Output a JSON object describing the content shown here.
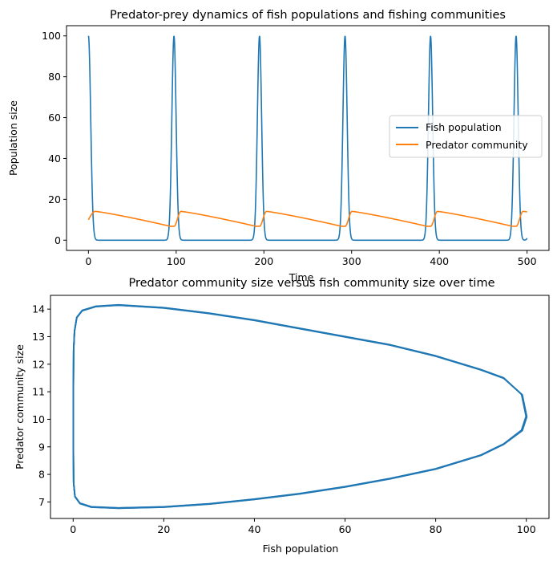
{
  "chart_data": [
    {
      "type": "line",
      "title": "Predator-prey dynamics of fish populations and fishing communities",
      "xlabel": "Time",
      "ylabel": "Population size",
      "xlim": [
        -25,
        525
      ],
      "ylim": [
        -5,
        105
      ],
      "xticks": [
        0,
        100,
        200,
        300,
        400,
        500
      ],
      "yticks": [
        0,
        20,
        40,
        60,
        80,
        100
      ],
      "grid": false,
      "legend_position": "center-right",
      "series": [
        {
          "name": "Fish population",
          "color": "#1f77b4",
          "peaks_at_time": [
            0,
            97.5,
            195,
            292.5,
            390,
            487.5
          ],
          "peak_value": 100,
          "trough_value": 0,
          "end_value": 1
        },
        {
          "name": "Predator community",
          "color": "#ff7f0e",
          "max_value": 14.1,
          "min_value": 6.8,
          "start_value": 10
        }
      ]
    },
    {
      "type": "line",
      "title": "Predator community size versus fish community size over time",
      "xlabel": "Fish population",
      "ylabel": "Predator community size",
      "xlim": [
        -5,
        105
      ],
      "ylim": [
        6.4,
        14.5
      ],
      "xticks": [
        0,
        20,
        40,
        60,
        80,
        100
      ],
      "yticks": [
        7,
        8,
        9,
        10,
        11,
        12,
        13,
        14
      ],
      "grid": false,
      "series": [
        {
          "color": "#1f77b4",
          "points": [
            [
              100,
              10.1
            ],
            [
              99,
              10.9
            ],
            [
              95,
              11.5
            ],
            [
              90,
              11.8
            ],
            [
              80,
              12.3
            ],
            [
              70,
              12.7
            ],
            [
              60,
              13.0
            ],
            [
              50,
              13.3
            ],
            [
              40,
              13.6
            ],
            [
              30,
              13.85
            ],
            [
              20,
              14.05
            ],
            [
              10,
              14.15
            ],
            [
              5,
              14.1
            ],
            [
              2,
              13.95
            ],
            [
              0.8,
              13.7
            ],
            [
              0.3,
              13.2
            ],
            [
              0.1,
              12.5
            ],
            [
              0.05,
              11.0
            ],
            [
              0.05,
              9.0
            ],
            [
              0.1,
              7.7
            ],
            [
              0.4,
              7.2
            ],
            [
              1.5,
              6.95
            ],
            [
              4,
              6.82
            ],
            [
              10,
              6.78
            ],
            [
              20,
              6.82
            ],
            [
              30,
              6.93
            ],
            [
              40,
              7.1
            ],
            [
              50,
              7.3
            ],
            [
              60,
              7.55
            ],
            [
              70,
              7.85
            ],
            [
              80,
              8.2
            ],
            [
              90,
              8.7
            ],
            [
              95,
              9.1
            ],
            [
              99,
              9.6
            ],
            [
              100,
              10.1
            ]
          ]
        }
      ]
    }
  ]
}
